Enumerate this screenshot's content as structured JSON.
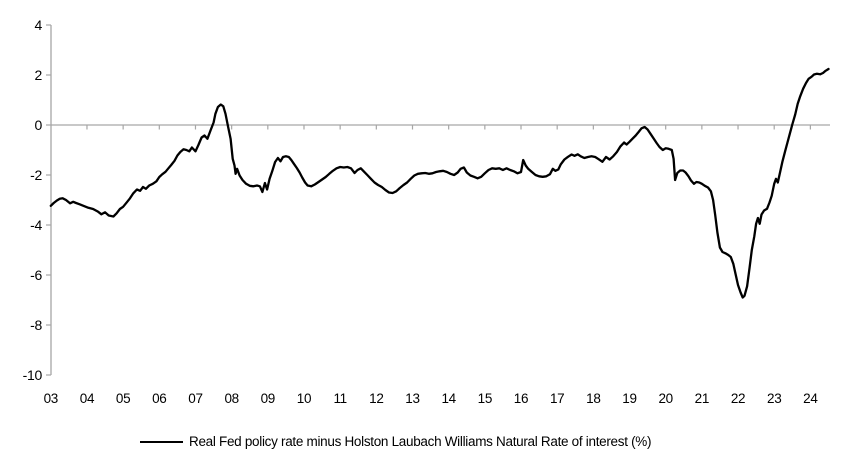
{
  "chart_data": {
    "type": "line",
    "title": "",
    "xlabel": "",
    "ylabel": "",
    "legend_position": "bottom",
    "grid": false,
    "zero_axis_line": true,
    "ylim": [
      -10,
      4
    ],
    "xlim": [
      2003,
      2024.6
    ],
    "y_tick_values": [
      4,
      2,
      0,
      -2,
      -4,
      -6,
      -8,
      -10
    ],
    "y_tick_labels": [
      "4",
      "2",
      "0",
      "-2",
      "-4",
      "-6",
      "-8",
      "-10"
    ],
    "x_tick_values": [
      2003,
      2004,
      2005,
      2006,
      2007,
      2008,
      2009,
      2010,
      2011,
      2012,
      2013,
      2014,
      2015,
      2016,
      2017,
      2018,
      2019,
      2020,
      2021,
      2022,
      2023,
      2024
    ],
    "x_tick_labels": [
      "03",
      "04",
      "05",
      "06",
      "07",
      "08",
      "09",
      "10",
      "11",
      "12",
      "13",
      "14",
      "15",
      "16",
      "17",
      "18",
      "19",
      "20",
      "21",
      "22",
      "23",
      "24"
    ],
    "colors": {
      "series": "#000000",
      "axis": "#a6a6a6",
      "text": "#000000",
      "background": "#ffffff"
    },
    "series": [
      {
        "name": "Real Fed policy rate minus Holston Laubach Williams Natural Rate of interest (%)",
        "points": [
          [
            2003.0,
            -3.23
          ],
          [
            2003.08,
            -3.12
          ],
          [
            2003.17,
            -3.02
          ],
          [
            2003.25,
            -2.95
          ],
          [
            2003.33,
            -2.93
          ],
          [
            2003.42,
            -3.0
          ],
          [
            2003.53,
            -3.13
          ],
          [
            2003.62,
            -3.07
          ],
          [
            2003.7,
            -3.12
          ],
          [
            2003.8,
            -3.17
          ],
          [
            2003.9,
            -3.23
          ],
          [
            2004.04,
            -3.31
          ],
          [
            2004.17,
            -3.36
          ],
          [
            2004.31,
            -3.47
          ],
          [
            2004.4,
            -3.57
          ],
          [
            2004.5,
            -3.49
          ],
          [
            2004.6,
            -3.62
          ],
          [
            2004.73,
            -3.66
          ],
          [
            2004.82,
            -3.53
          ],
          [
            2004.91,
            -3.36
          ],
          [
            2005.0,
            -3.27
          ],
          [
            2005.1,
            -3.09
          ],
          [
            2005.19,
            -2.93
          ],
          [
            2005.28,
            -2.73
          ],
          [
            2005.38,
            -2.58
          ],
          [
            2005.47,
            -2.63
          ],
          [
            2005.55,
            -2.48
          ],
          [
            2005.63,
            -2.55
          ],
          [
            2005.72,
            -2.42
          ],
          [
            2005.82,
            -2.35
          ],
          [
            2005.92,
            -2.25
          ],
          [
            2006.0,
            -2.08
          ],
          [
            2006.08,
            -1.97
          ],
          [
            2006.17,
            -1.87
          ],
          [
            2006.25,
            -1.73
          ],
          [
            2006.33,
            -1.6
          ],
          [
            2006.42,
            -1.43
          ],
          [
            2006.5,
            -1.22
          ],
          [
            2006.58,
            -1.08
          ],
          [
            2006.67,
            -0.97
          ],
          [
            2006.75,
            -1.0
          ],
          [
            2006.83,
            -1.05
          ],
          [
            2006.9,
            -0.9
          ],
          [
            2007.0,
            -1.05
          ],
          [
            2007.08,
            -0.8
          ],
          [
            2007.17,
            -0.5
          ],
          [
            2007.25,
            -0.42
          ],
          [
            2007.33,
            -0.55
          ],
          [
            2007.42,
            -0.2
          ],
          [
            2007.5,
            0.1
          ],
          [
            2007.55,
            0.45
          ],
          [
            2007.62,
            0.72
          ],
          [
            2007.7,
            0.82
          ],
          [
            2007.77,
            0.75
          ],
          [
            2007.83,
            0.45
          ],
          [
            2007.9,
            -0.05
          ],
          [
            2007.97,
            -0.55
          ],
          [
            2008.03,
            -1.35
          ],
          [
            2008.08,
            -1.62
          ],
          [
            2008.11,
            -1.95
          ],
          [
            2008.15,
            -1.75
          ],
          [
            2008.22,
            -2.02
          ],
          [
            2008.3,
            -2.2
          ],
          [
            2008.4,
            -2.35
          ],
          [
            2008.5,
            -2.43
          ],
          [
            2008.6,
            -2.45
          ],
          [
            2008.7,
            -2.42
          ],
          [
            2008.78,
            -2.45
          ],
          [
            2008.85,
            -2.68
          ],
          [
            2008.92,
            -2.32
          ],
          [
            2008.98,
            -2.58
          ],
          [
            2009.05,
            -2.15
          ],
          [
            2009.12,
            -1.85
          ],
          [
            2009.2,
            -1.48
          ],
          [
            2009.28,
            -1.32
          ],
          [
            2009.35,
            -1.45
          ],
          [
            2009.42,
            -1.28
          ],
          [
            2009.5,
            -1.25
          ],
          [
            2009.58,
            -1.28
          ],
          [
            2009.65,
            -1.4
          ],
          [
            2009.72,
            -1.55
          ],
          [
            2009.8,
            -1.72
          ],
          [
            2009.88,
            -1.9
          ],
          [
            2009.95,
            -2.1
          ],
          [
            2010.03,
            -2.3
          ],
          [
            2010.1,
            -2.42
          ],
          [
            2010.2,
            -2.45
          ],
          [
            2010.3,
            -2.38
          ],
          [
            2010.4,
            -2.28
          ],
          [
            2010.5,
            -2.18
          ],
          [
            2010.6,
            -2.08
          ],
          [
            2010.7,
            -1.95
          ],
          [
            2010.8,
            -1.83
          ],
          [
            2010.9,
            -1.73
          ],
          [
            2011.0,
            -1.68
          ],
          [
            2011.1,
            -1.7
          ],
          [
            2011.2,
            -1.68
          ],
          [
            2011.3,
            -1.73
          ],
          [
            2011.4,
            -1.92
          ],
          [
            2011.48,
            -1.8
          ],
          [
            2011.57,
            -1.73
          ],
          [
            2011.65,
            -1.85
          ],
          [
            2011.75,
            -2.0
          ],
          [
            2011.85,
            -2.15
          ],
          [
            2011.95,
            -2.3
          ],
          [
            2012.05,
            -2.4
          ],
          [
            2012.15,
            -2.48
          ],
          [
            2012.25,
            -2.6
          ],
          [
            2012.35,
            -2.7
          ],
          [
            2012.45,
            -2.72
          ],
          [
            2012.55,
            -2.65
          ],
          [
            2012.65,
            -2.52
          ],
          [
            2012.75,
            -2.4
          ],
          [
            2012.85,
            -2.3
          ],
          [
            2012.95,
            -2.15
          ],
          [
            2013.05,
            -2.02
          ],
          [
            2013.15,
            -1.95
          ],
          [
            2013.25,
            -1.93
          ],
          [
            2013.35,
            -1.92
          ],
          [
            2013.45,
            -1.95
          ],
          [
            2013.55,
            -1.93
          ],
          [
            2013.65,
            -1.88
          ],
          [
            2013.75,
            -1.85
          ],
          [
            2013.85,
            -1.83
          ],
          [
            2013.95,
            -1.88
          ],
          [
            2014.05,
            -1.95
          ],
          [
            2014.15,
            -2.0
          ],
          [
            2014.25,
            -1.9
          ],
          [
            2014.33,
            -1.75
          ],
          [
            2014.42,
            -1.7
          ],
          [
            2014.5,
            -1.9
          ],
          [
            2014.6,
            -2.02
          ],
          [
            2014.7,
            -2.07
          ],
          [
            2014.8,
            -2.13
          ],
          [
            2014.9,
            -2.07
          ],
          [
            2015.0,
            -1.93
          ],
          [
            2015.1,
            -1.8
          ],
          [
            2015.2,
            -1.73
          ],
          [
            2015.3,
            -1.75
          ],
          [
            2015.4,
            -1.73
          ],
          [
            2015.5,
            -1.8
          ],
          [
            2015.6,
            -1.73
          ],
          [
            2015.7,
            -1.8
          ],
          [
            2015.8,
            -1.85
          ],
          [
            2015.9,
            -1.93
          ],
          [
            2016.0,
            -1.88
          ],
          [
            2016.06,
            -1.4
          ],
          [
            2016.13,
            -1.62
          ],
          [
            2016.2,
            -1.75
          ],
          [
            2016.3,
            -1.88
          ],
          [
            2016.4,
            -2.0
          ],
          [
            2016.5,
            -2.05
          ],
          [
            2016.6,
            -2.07
          ],
          [
            2016.7,
            -2.05
          ],
          [
            2016.8,
            -1.97
          ],
          [
            2016.88,
            -1.75
          ],
          [
            2016.95,
            -1.83
          ],
          [
            2017.03,
            -1.78
          ],
          [
            2017.1,
            -1.57
          ],
          [
            2017.2,
            -1.38
          ],
          [
            2017.3,
            -1.27
          ],
          [
            2017.4,
            -1.18
          ],
          [
            2017.48,
            -1.23
          ],
          [
            2017.57,
            -1.17
          ],
          [
            2017.65,
            -1.25
          ],
          [
            2017.75,
            -1.32
          ],
          [
            2017.85,
            -1.28
          ],
          [
            2017.95,
            -1.25
          ],
          [
            2018.05,
            -1.28
          ],
          [
            2018.15,
            -1.37
          ],
          [
            2018.25,
            -1.47
          ],
          [
            2018.35,
            -1.28
          ],
          [
            2018.45,
            -1.38
          ],
          [
            2018.55,
            -1.25
          ],
          [
            2018.65,
            -1.08
          ],
          [
            2018.75,
            -0.85
          ],
          [
            2018.85,
            -0.7
          ],
          [
            2018.92,
            -0.78
          ],
          [
            2019.0,
            -0.67
          ],
          [
            2019.08,
            -0.55
          ],
          [
            2019.17,
            -0.42
          ],
          [
            2019.25,
            -0.28
          ],
          [
            2019.33,
            -0.13
          ],
          [
            2019.42,
            -0.08
          ],
          [
            2019.5,
            -0.18
          ],
          [
            2019.58,
            -0.35
          ],
          [
            2019.67,
            -0.55
          ],
          [
            2019.75,
            -0.72
          ],
          [
            2019.83,
            -0.88
          ],
          [
            2019.92,
            -1.0
          ],
          [
            2020.0,
            -0.93
          ],
          [
            2020.08,
            -0.95
          ],
          [
            2020.17,
            -1.0
          ],
          [
            2020.22,
            -1.35
          ],
          [
            2020.26,
            -2.2
          ],
          [
            2020.32,
            -1.92
          ],
          [
            2020.4,
            -1.82
          ],
          [
            2020.48,
            -1.82
          ],
          [
            2020.55,
            -1.9
          ],
          [
            2020.63,
            -2.05
          ],
          [
            2020.7,
            -2.22
          ],
          [
            2020.78,
            -2.35
          ],
          [
            2020.85,
            -2.28
          ],
          [
            2020.93,
            -2.3
          ],
          [
            2021.0,
            -2.35
          ],
          [
            2021.08,
            -2.43
          ],
          [
            2021.17,
            -2.5
          ],
          [
            2021.25,
            -2.65
          ],
          [
            2021.31,
            -3.0
          ],
          [
            2021.37,
            -3.6
          ],
          [
            2021.43,
            -4.3
          ],
          [
            2021.5,
            -4.9
          ],
          [
            2021.57,
            -5.08
          ],
          [
            2021.65,
            -5.13
          ],
          [
            2021.73,
            -5.2
          ],
          [
            2021.8,
            -5.28
          ],
          [
            2021.87,
            -5.55
          ],
          [
            2021.93,
            -5.95
          ],
          [
            2022.0,
            -6.4
          ],
          [
            2022.07,
            -6.7
          ],
          [
            2022.13,
            -6.9
          ],
          [
            2022.18,
            -6.83
          ],
          [
            2022.25,
            -6.45
          ],
          [
            2022.32,
            -5.7
          ],
          [
            2022.38,
            -5.0
          ],
          [
            2022.45,
            -4.45
          ],
          [
            2022.5,
            -3.95
          ],
          [
            2022.55,
            -3.72
          ],
          [
            2022.6,
            -3.95
          ],
          [
            2022.65,
            -3.58
          ],
          [
            2022.72,
            -3.42
          ],
          [
            2022.8,
            -3.35
          ],
          [
            2022.87,
            -3.1
          ],
          [
            2022.93,
            -2.83
          ],
          [
            2023.0,
            -2.35
          ],
          [
            2023.05,
            -2.15
          ],
          [
            2023.1,
            -2.3
          ],
          [
            2023.17,
            -1.85
          ],
          [
            2023.23,
            -1.45
          ],
          [
            2023.3,
            -1.05
          ],
          [
            2023.37,
            -0.68
          ],
          [
            2023.43,
            -0.35
          ],
          [
            2023.5,
            0.02
          ],
          [
            2023.58,
            0.42
          ],
          [
            2023.65,
            0.85
          ],
          [
            2023.72,
            1.15
          ],
          [
            2023.8,
            1.45
          ],
          [
            2023.88,
            1.68
          ],
          [
            2023.95,
            1.85
          ],
          [
            2024.03,
            1.93
          ],
          [
            2024.1,
            2.02
          ],
          [
            2024.18,
            2.05
          ],
          [
            2024.27,
            2.03
          ],
          [
            2024.35,
            2.08
          ],
          [
            2024.42,
            2.17
          ],
          [
            2024.5,
            2.24
          ]
        ]
      }
    ]
  }
}
